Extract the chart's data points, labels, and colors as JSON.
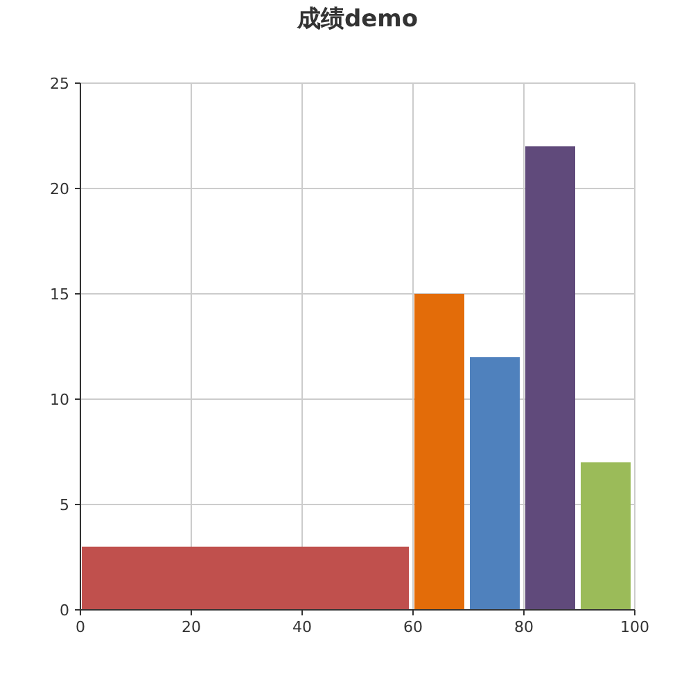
{
  "chart_data": {
    "type": "histogram",
    "title": "成绩demo",
    "bins": [
      0,
      60,
      70,
      80,
      90,
      100
    ],
    "values": [
      3,
      15,
      12,
      22,
      7
    ],
    "colors": [
      "#c0504d",
      "#e36c09",
      "#4f81bd",
      "#604a7b",
      "#9bbb59"
    ],
    "xlim": [
      0,
      100
    ],
    "xticks": [
      0,
      20,
      40,
      60,
      80,
      100
    ],
    "ylim": [
      0,
      25
    ],
    "yticks": [
      0,
      5,
      10,
      15,
      20,
      25
    ],
    "grid": true
  }
}
